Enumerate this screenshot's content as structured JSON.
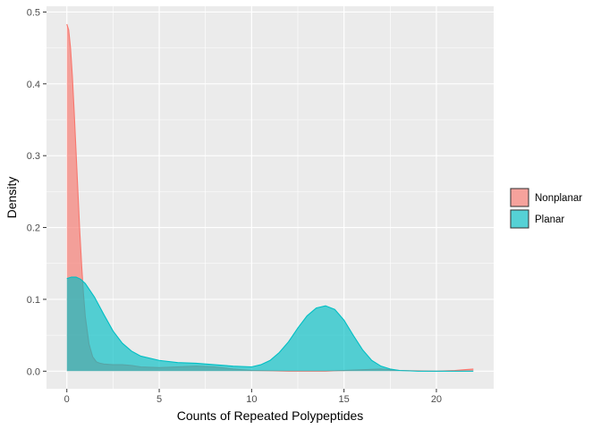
{
  "chart_data": {
    "type": "area",
    "xlabel": "Counts of Repeated Polypeptides",
    "ylabel": "Density",
    "xlim": [
      -1.1,
      23.1
    ],
    "ylim": [
      -0.0245,
      0.508
    ],
    "x_ticks": [
      0,
      5,
      10,
      15,
      20
    ],
    "y_ticks": [
      0.0,
      0.1,
      0.2,
      0.3,
      0.4,
      0.5
    ],
    "x_tick_labels": [
      "0",
      "5",
      "10",
      "15",
      "20"
    ],
    "y_tick_labels": [
      "0.0",
      "0.1",
      "0.2",
      "0.3",
      "0.4",
      "0.5"
    ],
    "grid": true,
    "legend_position": "right",
    "series": [
      {
        "name": "Nonplanar",
        "color": "#F8766D",
        "x": [
          0,
          0.1,
          0.2,
          0.3,
          0.4,
          0.5,
          0.6,
          0.7,
          0.8,
          0.9,
          1.0,
          1.2,
          1.4,
          1.6,
          1.8,
          2.0,
          2.5,
          3.0,
          3.5,
          4.0,
          5.0,
          6.0,
          7.0,
          8.0,
          9.0,
          10.0,
          12.0,
          14.0,
          16.0,
          17.0,
          18.0,
          20.0,
          21.0,
          21.5,
          22.0
        ],
        "values": [
          0.483,
          0.475,
          0.45,
          0.41,
          0.36,
          0.305,
          0.25,
          0.195,
          0.148,
          0.108,
          0.076,
          0.038,
          0.02,
          0.013,
          0.011,
          0.01,
          0.009,
          0.009,
          0.008,
          0.006,
          0.005,
          0.006,
          0.007,
          0.006,
          0.003,
          0.001,
          0.0,
          0.0,
          0.002,
          0.003,
          0.001,
          0.0,
          0.001,
          0.002,
          0.003
        ]
      },
      {
        "name": "Planar",
        "color": "#00BFC4",
        "x": [
          0,
          0.25,
          0.5,
          0.75,
          1.0,
          1.5,
          2.0,
          2.5,
          3.0,
          3.5,
          4.0,
          5.0,
          6.0,
          7.0,
          8.0,
          9.0,
          10.0,
          10.5,
          11.0,
          11.5,
          12.0,
          12.5,
          13.0,
          13.5,
          14.0,
          14.5,
          15.0,
          15.5,
          16.0,
          16.5,
          17.0,
          17.5,
          18.0,
          19.0,
          20.0,
          21.0,
          22.0
        ],
        "values": [
          0.129,
          0.131,
          0.131,
          0.128,
          0.122,
          0.103,
          0.079,
          0.056,
          0.039,
          0.028,
          0.021,
          0.015,
          0.012,
          0.011,
          0.009,
          0.007,
          0.006,
          0.009,
          0.015,
          0.026,
          0.041,
          0.06,
          0.077,
          0.088,
          0.091,
          0.086,
          0.071,
          0.05,
          0.03,
          0.015,
          0.007,
          0.003,
          0.001,
          0.0,
          0.0,
          0.0,
          0.0
        ]
      }
    ]
  }
}
